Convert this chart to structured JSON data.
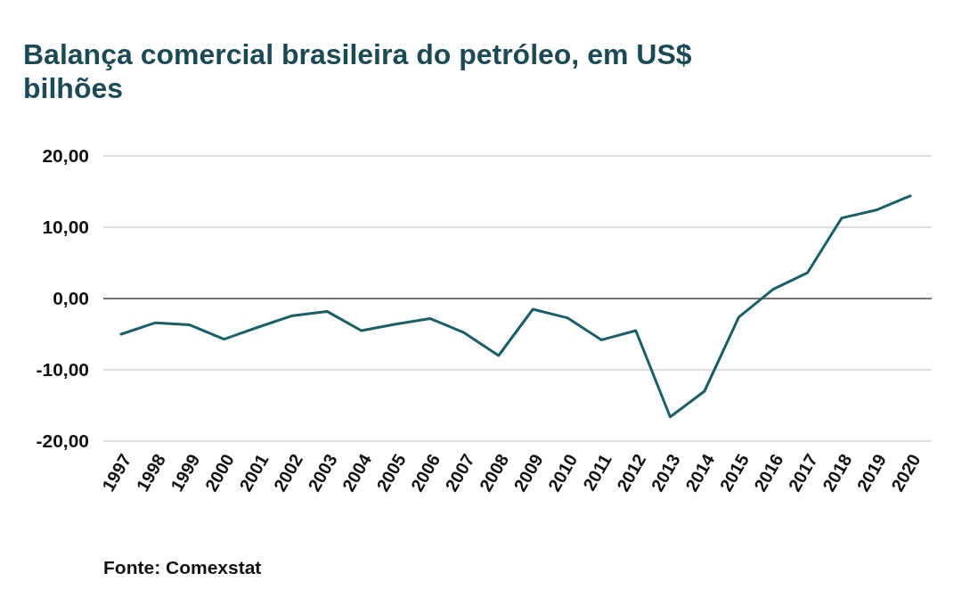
{
  "chart_data": {
    "type": "line",
    "title": "Balança comercial brasileira do petróleo, em US$ bilhões",
    "categories": [
      "1997",
      "1998",
      "1999",
      "2000",
      "2001",
      "2002",
      "2003",
      "2004",
      "2005",
      "2006",
      "2007",
      "2008",
      "2009",
      "2010",
      "2011",
      "2012",
      "2013",
      "2014",
      "2015",
      "2016",
      "2017",
      "2018",
      "2019",
      "2020"
    ],
    "series": [
      {
        "color": "#1b5e66",
        "values": [
          -5.0,
          -3.4,
          -3.7,
          -5.7,
          -4.0,
          -2.4,
          -1.8,
          -4.5,
          -3.6,
          -2.8,
          -4.8,
          -8.0,
          -1.5,
          -2.7,
          -5.8,
          -4.5,
          -16.6,
          -13.0,
          -2.6,
          1.3,
          3.6,
          11.3,
          12.4,
          14.4
        ]
      }
    ],
    "ylim": [
      -20,
      20
    ],
    "yticks": [
      {
        "value": -20,
        "label": "-20,00"
      },
      {
        "value": -10,
        "label": "-10,00"
      },
      {
        "value": 0,
        "label": "0,00"
      },
      {
        "value": 10,
        "label": "10,00"
      },
      {
        "value": 20,
        "label": "20,00"
      }
    ],
    "grid": "y",
    "marker": "none",
    "line_style": "solid",
    "annotations": [
      "Fonte: Comexstat"
    ]
  }
}
